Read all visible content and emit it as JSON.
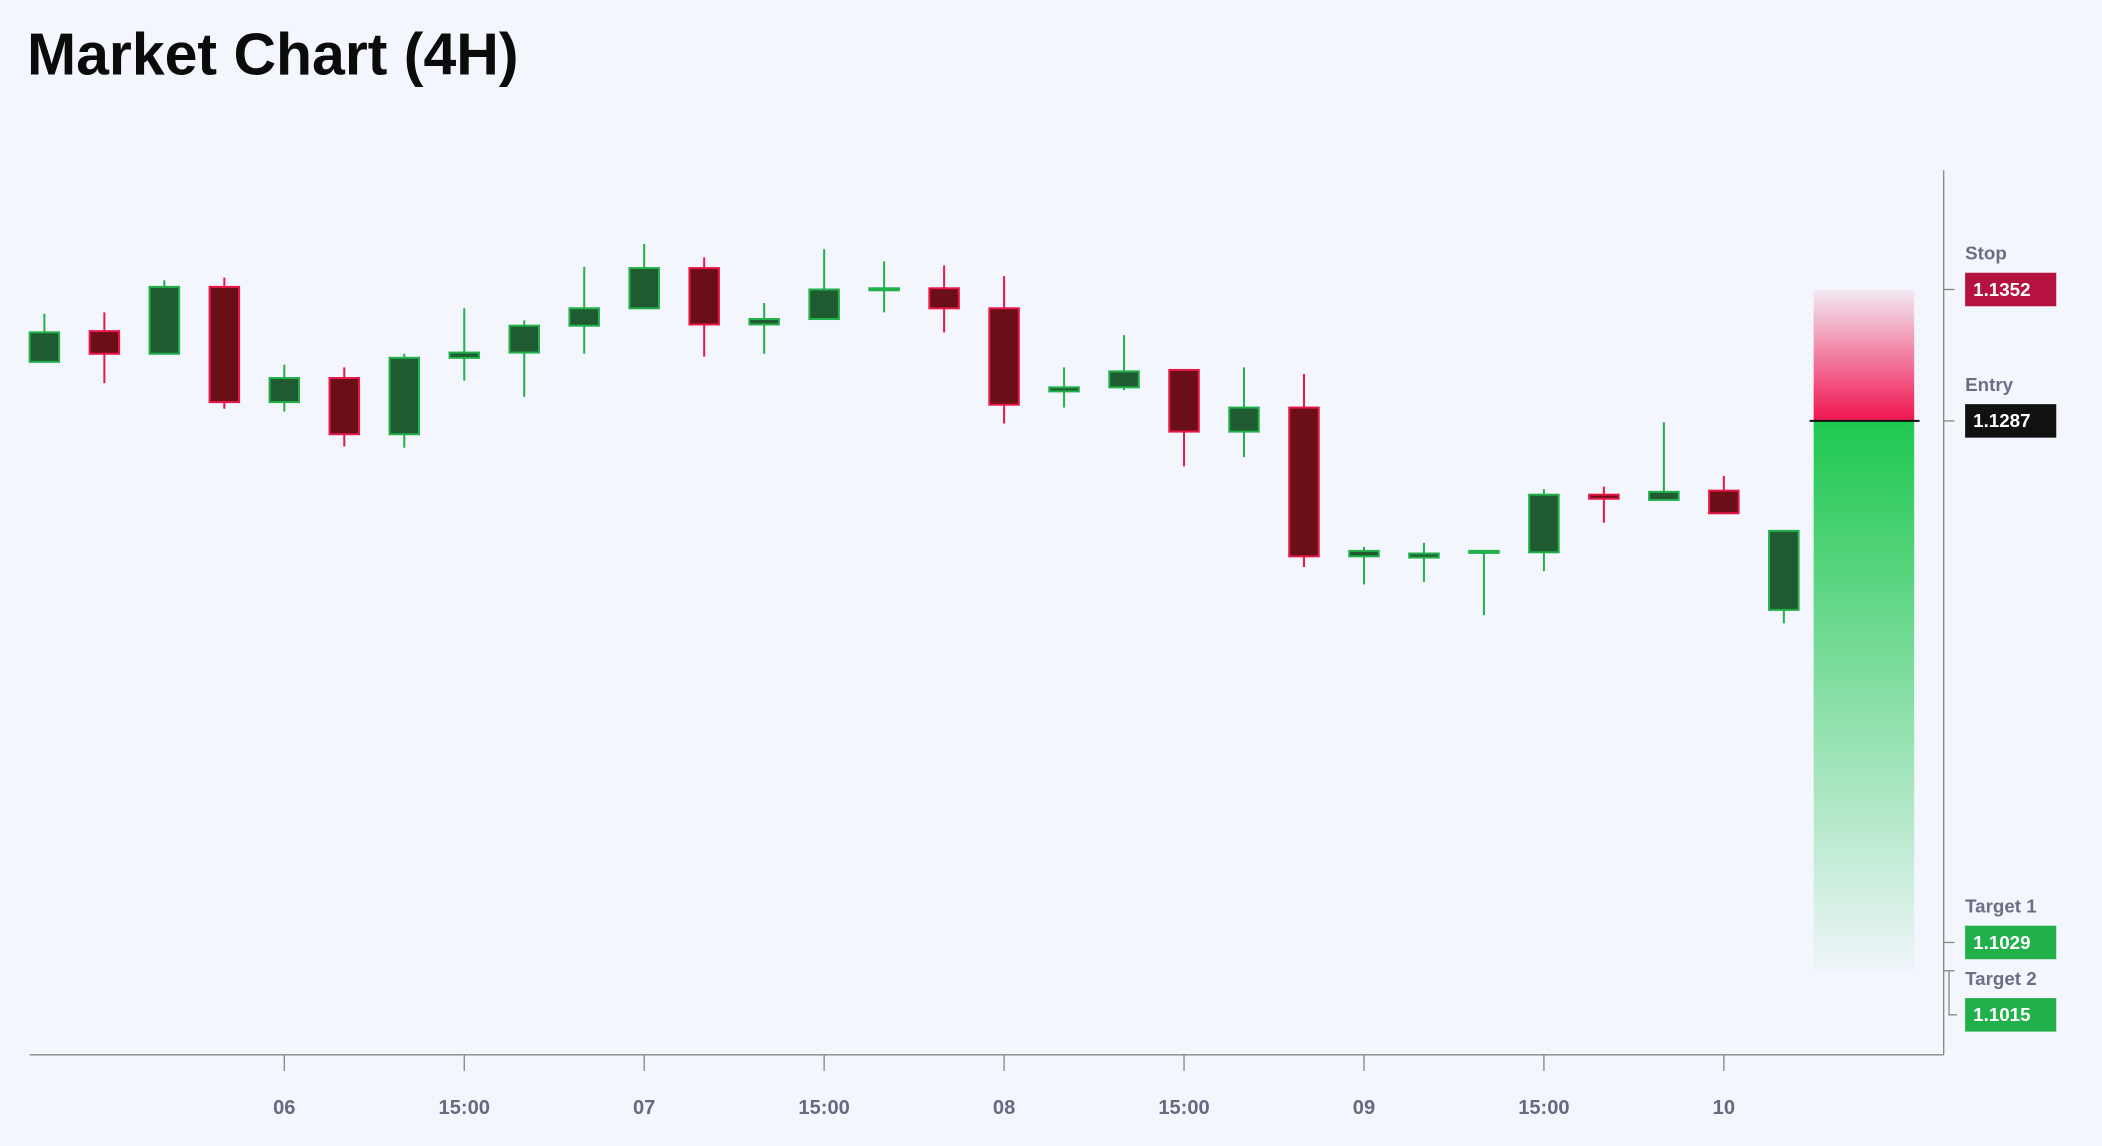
{
  "chart_data": {
    "type": "candlestick",
    "title": "Market Chart (4H)",
    "categories": [
      null,
      null,
      null,
      null,
      "06",
      null,
      null,
      "15:00",
      null,
      null,
      "07",
      null,
      null,
      "15:00",
      null,
      null,
      "08",
      null,
      null,
      "15:00",
      null,
      null,
      "09",
      null,
      null,
      "15:00",
      null,
      null,
      "10",
      null
    ],
    "open": [
      1.13162,
      1.13314,
      1.13202,
      1.13533,
      1.12963,
      1.13082,
      1.12804,
      1.13182,
      1.13208,
      1.13341,
      1.13427,
      1.13626,
      1.13347,
      1.13374,
      1.1352,
      1.13526,
      1.13427,
      1.13016,
      1.13036,
      1.13122,
      1.12817,
      1.12936,
      1.122,
      1.12194,
      1.1222,
      1.1222,
      1.12505,
      1.12479,
      1.12525,
      1.11935
    ],
    "high": [
      1.134,
      1.13407,
      1.13566,
      1.13579,
      1.13148,
      1.13135,
      1.13202,
      1.13427,
      1.13367,
      1.13632,
      1.13745,
      1.13679,
      1.13453,
      1.13719,
      1.13659,
      1.13639,
      1.13586,
      1.13135,
      1.13294,
      1.13122,
      1.13135,
      1.13102,
      1.12247,
      1.12267,
      1.12227,
      1.12532,
      1.12545,
      1.12863,
      1.12598,
      1.12326
    ],
    "low": [
      1.13162,
      1.13056,
      1.13202,
      1.1293,
      1.12916,
      1.12744,
      1.12737,
      1.13069,
      1.12989,
      1.13202,
      1.13427,
      1.13188,
      1.13202,
      1.13374,
      1.13407,
      1.13308,
      1.12857,
      1.12936,
      1.13022,
      1.12645,
      1.12691,
      1.12147,
      1.12061,
      1.12074,
      1.11909,
      1.12127,
      1.12366,
      1.12479,
      1.12413,
      1.11869
    ],
    "close": [
      1.13308,
      1.13202,
      1.13533,
      1.12963,
      1.13082,
      1.12804,
      1.13182,
      1.13208,
      1.13341,
      1.13427,
      1.13626,
      1.13347,
      1.13374,
      1.1352,
      1.13526,
      1.13427,
      1.1295,
      1.13036,
      1.13115,
      1.12817,
      1.12936,
      1.122,
      1.12227,
      1.12214,
      1.12227,
      1.12505,
      1.12485,
      1.12519,
      1.12413,
      1.12326
    ],
    "up_color": "#1f5a30",
    "up_border": "#22b04b",
    "down_color": "#6b0f17",
    "down_border": "#e8174a",
    "ylim": [
      1.09734,
      1.1411
    ],
    "levels": [
      {
        "name": "Stop",
        "value": 1.1352,
        "color": "#b5123f"
      },
      {
        "name": "Entry",
        "value": 1.1287,
        "color": "#111111"
      },
      {
        "name": "Target 1",
        "value": 1.1029,
        "color": "#22b04b"
      },
      {
        "name": "Target 2",
        "value": 1.1015,
        "color": "#22b04b"
      }
    ],
    "risk_color": "#f01450",
    "reward_color": "#1ec84f"
  }
}
